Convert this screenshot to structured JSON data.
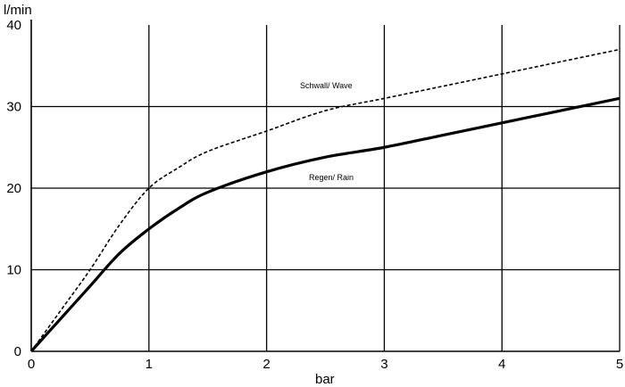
{
  "chart_data": {
    "type": "line",
    "xlabel": "bar",
    "ylabel": "l/min",
    "xlim": [
      0,
      5
    ],
    "ylim": [
      0,
      40
    ],
    "x_ticks": [
      "0",
      "1",
      "2",
      "3",
      "4",
      "5"
    ],
    "y_ticks": [
      "0",
      "10",
      "20",
      "30",
      "40"
    ],
    "grid": true,
    "series": [
      {
        "name": "Schwall/ Wave",
        "line_style": "dashed",
        "x": [
          0,
          0.25,
          0.5,
          0.75,
          1,
          1.25,
          1.5,
          2,
          2.5,
          3,
          3.5,
          4,
          4.5,
          5
        ],
        "y": [
          0,
          5,
          10,
          15.5,
          20,
          22.5,
          24.5,
          27,
          29.5,
          31,
          32.5,
          34,
          35.5,
          37
        ]
      },
      {
        "name": "Regen/ Rain",
        "line_style": "solid",
        "x": [
          0,
          0.25,
          0.5,
          0.75,
          1,
          1.25,
          1.5,
          2,
          2.5,
          3,
          3.5,
          4,
          4.5,
          5
        ],
        "y": [
          0,
          4,
          8,
          12,
          15,
          17.5,
          19.5,
          22,
          23.8,
          25,
          26.5,
          28,
          29.5,
          31
        ]
      }
    ],
    "colors": {
      "line": "#000000",
      "grid": "#000000",
      "background": "#ffffff"
    }
  }
}
